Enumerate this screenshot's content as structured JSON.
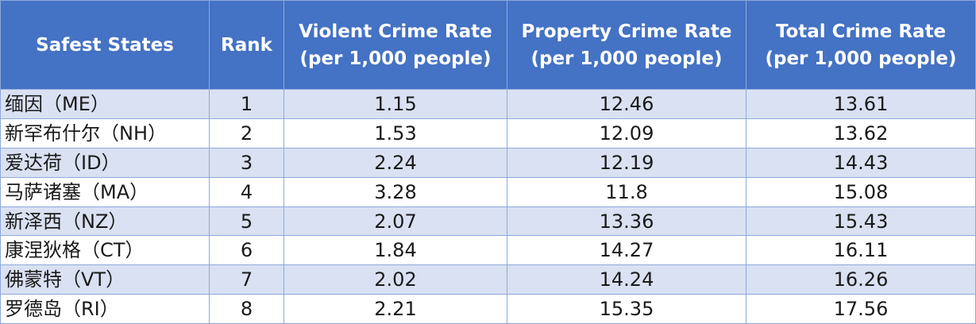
{
  "headers": {
    "state": "Safest States",
    "rank": "Rank",
    "violent_line1": "Violent Crime Rate",
    "violent_line2": "(per 1,000 people)",
    "property_line1": "Property Crime Rate",
    "property_line2": "(per 1,000 people)",
    "total_line1": "Total Crime Rate",
    "total_line2": "(per 1,000 people)"
  },
  "rows": [
    {
      "state": "缅因（ME）",
      "rank": "1",
      "violent": "1.15",
      "property": "12.46",
      "total": "13.61"
    },
    {
      "state": "新罕布什尔（NH）",
      "rank": "2",
      "violent": "1.53",
      "property": "12.09",
      "total": "13.62"
    },
    {
      "state": "爱达荷（ID）",
      "rank": "3",
      "violent": "2.24",
      "property": "12.19",
      "total": "14.43"
    },
    {
      "state": "马萨诸塞（MA）",
      "rank": "4",
      "violent": "3.28",
      "property": "11.8",
      "total": "15.08"
    },
    {
      "state": "新泽西（NZ）",
      "rank": "5",
      "violent": "2.07",
      "property": "13.36",
      "total": "15.43"
    },
    {
      "state": "康涅狄格（CT）",
      "rank": "6",
      "violent": "1.84",
      "property": "14.27",
      "total": "16.11"
    },
    {
      "state": "佛蒙特（VT）",
      "rank": "7",
      "violent": "2.02",
      "property": "14.24",
      "total": "16.26"
    },
    {
      "state": "罗德岛（RI）",
      "rank": "8",
      "violent": "2.21",
      "property": "15.35",
      "total": "17.56"
    }
  ],
  "colors": {
    "header_bg": "#4472C4",
    "band_bg": "#D9E1F2",
    "border": "#8EA9DB"
  }
}
